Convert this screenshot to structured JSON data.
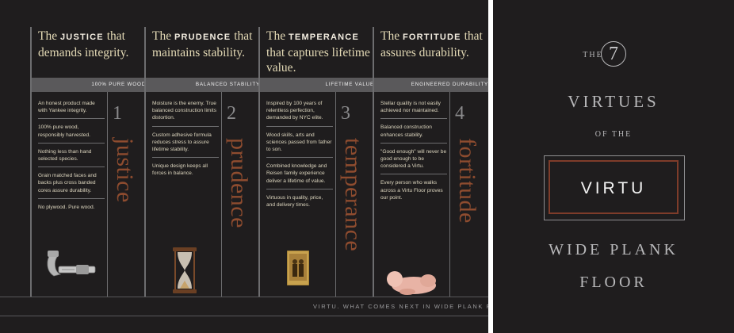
{
  "columns": [
    {
      "head_pre": "The ",
      "virtue": "JUSTICE",
      "head_post": " that demands integrity.",
      "band": "100% PURE WOOD",
      "number": "1",
      "word": "justice",
      "items": [
        "An honest product made with Yankee integrity.",
        "100% pure wood, responsibly harvested.",
        "Nothing less than hand selected species.",
        "Grain matched faces and backs plus cross banded cores assure durability.",
        "No plywood. Pure wood."
      ],
      "icon": "micrometer-icon"
    },
    {
      "head_pre": "The ",
      "virtue": "PRUDENCE",
      "head_post": " that maintains stability.",
      "band": "BALANCED STABILITY",
      "number": "2",
      "word": "prudence",
      "items": [
        "Moisture is the enemy. True balanced construction limits distortion.",
        "Custom adhesive formula reduces stress to assure lifetime stability.",
        "Unique design keeps all forces in balance."
      ],
      "icon": "hourglass-icon"
    },
    {
      "head_pre": "The ",
      "virtue": "TEMPERANCE",
      "head_post": " that captures lifetime value.",
      "band": "LIFETIME VALUE",
      "number": "3",
      "word": "temperance",
      "items": [
        "Inspired by 100 years of relentless perfection, demanded by NYC elite.",
        "Wood skills, arts and sciences passed from father to son.",
        "Combined knowledge and Reisen family experience deliver a lifetime of value.",
        "Virtuous in quality, price, and delivery times."
      ],
      "icon": "photograph-icon"
    },
    {
      "head_pre": "The ",
      "virtue": "FORTITUDE",
      "head_post": " that assures durability.",
      "band": "ENGINEERED DURABILITY",
      "number": "4",
      "word": "fortitude",
      "items": [
        "Stellar quality is not easily achieved nor maintained.",
        "Balanced construction enhances stability.",
        "\"Good enough\" will never be good enough to be considered a Virtu.",
        "Every person who walks across a Virtu Floor proves our point."
      ],
      "icon": "baby-icon"
    }
  ],
  "tagline": "VIRTU. WHAT COMES NEXT IN WIDE PLANK FL",
  "cover": {
    "the": "THE",
    "seven": "7",
    "virtues": "VIRTUES",
    "of_the": "OF THE",
    "brand": "VIRTU",
    "line1": "WIDE PLANK",
    "line2": "FLOOR"
  },
  "colors": {
    "background": "#1f1d1e",
    "accent_rust": "#8e4c2f",
    "band_gray": "#5a595b"
  }
}
